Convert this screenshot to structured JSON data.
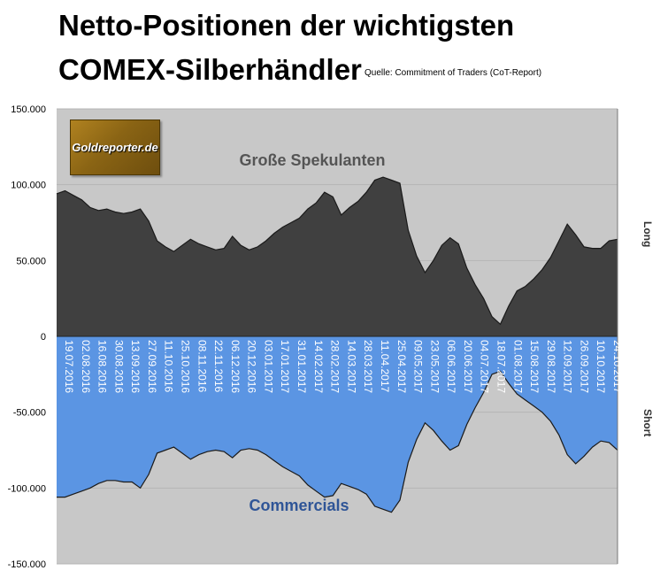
{
  "title_line1": "Netto-Positionen der wichtigsten",
  "title_line2": "COMEX-Silberhändler",
  "source": "Quelle: Commitment of Traders (CoT-Report)",
  "logo_text": "Goldreporter.de",
  "colors": {
    "plot_bg": "#c8c8c8",
    "speculators": "#404040",
    "commercials": "#5b95e3",
    "commercials_label": "#2f5597",
    "speculators_label": "#555555"
  },
  "chart_data": {
    "type": "area",
    "ylim": [
      -150000,
      150000
    ],
    "yticks": [
      150000,
      100000,
      50000,
      0,
      -50000,
      -100000,
      -150000
    ],
    "ytick_labels": [
      "150.000",
      "100.000",
      "50.000",
      "0",
      "-50.000",
      "-100.000",
      "-150.000"
    ],
    "x_tick_labels": [
      "19.07.2016",
      "02.08.2016",
      "16.08.2016",
      "30.08.2016",
      "13.09.2016",
      "27.09.2016",
      "11.10.2016",
      "25.10.2016",
      "08.11.2016",
      "22.11.2016",
      "06.12.2016",
      "20.12.2016",
      "03.01.2017",
      "17.01.2017",
      "31.01.2017",
      "14.02.2017",
      "28.02.2017",
      "14.03.2017",
      "28.03.2017",
      "11.04.2017",
      "25.04.2017",
      "09.05.2017",
      "23.05.2017",
      "06.06.2017",
      "20.06.2017",
      "04.07.2017",
      "18.07.2017",
      "01.08.2017",
      "15.08.2017",
      "29.08.2017",
      "12.09.2017",
      "26.09.2017",
      "10.10.2017",
      "24.10.2017"
    ],
    "annotations": {
      "speculators": "Große Spekulanten",
      "commercials": "Commercials"
    },
    "side_labels": {
      "long": "Long",
      "short": "Short"
    },
    "series": [
      {
        "name": "Große Spekulanten",
        "values": [
          94000,
          96000,
          93000,
          90000,
          85000,
          83000,
          84000,
          82000,
          81000,
          82000,
          84000,
          76000,
          63000,
          59000,
          56000,
          60000,
          64000,
          61000,
          59000,
          57000,
          58000,
          66000,
          60000,
          57000,
          59000,
          63000,
          68000,
          72000,
          75000,
          78000,
          84000,
          88000,
          95000,
          92000,
          80000,
          85000,
          89000,
          95000,
          103000,
          105000,
          103000,
          101000,
          70000,
          53000,
          42000,
          50000,
          60000,
          65000,
          61000,
          45000,
          34000,
          25000,
          13000,
          8000,
          20000,
          30000,
          33000,
          38000,
          44000,
          52000,
          63000,
          74000,
          67000,
          59000,
          58000,
          58000,
          63000,
          64000
        ]
      },
      {
        "name": "Commercials",
        "values": [
          -106000,
          -106000,
          -104000,
          -102000,
          -100000,
          -97000,
          -95000,
          -95000,
          -96000,
          -96000,
          -100000,
          -91000,
          -77000,
          -75000,
          -73000,
          -77000,
          -81000,
          -78000,
          -76000,
          -75000,
          -76000,
          -80000,
          -75000,
          -74000,
          -75000,
          -78000,
          -82000,
          -86000,
          -89000,
          -92000,
          -98000,
          -102000,
          -106000,
          -105000,
          -97000,
          -99000,
          -101000,
          -104000,
          -112000,
          -114000,
          -116000,
          -108000,
          -83000,
          -68000,
          -57000,
          -62000,
          -69000,
          -75000,
          -72000,
          -58000,
          -47000,
          -37000,
          -25000,
          -23000,
          -31000,
          -38000,
          -42000,
          -46000,
          -50000,
          -56000,
          -65000,
          -78000,
          -84000,
          -79000,
          -73000,
          -69000,
          -70000,
          -75000
        ]
      }
    ]
  }
}
